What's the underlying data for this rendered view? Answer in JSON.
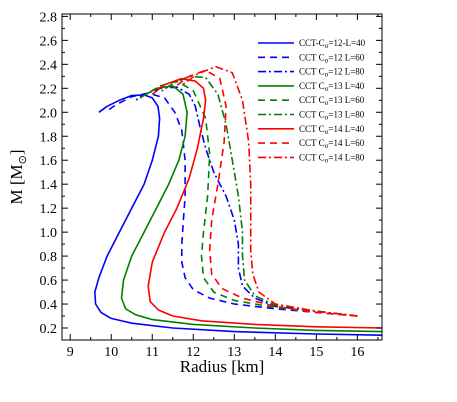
{
  "chart_data": {
    "type": "line",
    "xlabel": "Radius [km]",
    "ylabel": "M [M",
    "ylabel_sub": "⊙",
    "ylabel_close": "]",
    "xlim": [
      8.8,
      16.6
    ],
    "ylim": [
      0.1,
      2.82
    ],
    "xticks": [
      9,
      10,
      11,
      12,
      13,
      14,
      15,
      16
    ],
    "yticks": [
      0.2,
      0.4,
      0.6,
      0.8,
      1.0,
      1.2,
      1.4,
      1.6,
      1.8,
      2.0,
      2.2,
      2.4,
      2.6,
      2.8
    ],
    "ytick_labels": [
      "0.2",
      "0.4",
      "0.6",
      "0.8",
      "1.0",
      "1.2",
      "1.4",
      "1.6",
      "1.8",
      "2.0",
      "2.2",
      "2.4",
      "2.6",
      "2.8"
    ],
    "legend_position": "top-right",
    "colors": {
      "blue": "#0000ff",
      "green": "#008000",
      "red": "#ff0000"
    },
    "series": [
      {
        "name": "CCT-Cσ=12-L=40",
        "color": "#0000ff",
        "dash": "solid",
        "x": [
          16.6,
          15.0,
          13.0,
          11.5,
          10.5,
          10.0,
          9.75,
          9.62,
          9.6,
          9.7,
          9.9,
          10.2,
          10.5,
          10.8,
          11.0,
          11.15,
          11.18,
          11.14,
          11.0,
          10.8,
          10.5,
          10.2,
          9.9,
          9.7
        ],
        "y": [
          0.14,
          0.15,
          0.17,
          0.2,
          0.24,
          0.28,
          0.33,
          0.4,
          0.5,
          0.62,
          0.8,
          1.0,
          1.2,
          1.4,
          1.6,
          1.8,
          1.95,
          2.05,
          2.12,
          2.145,
          2.14,
          2.1,
          2.05,
          2.0
        ]
      },
      {
        "name": "CCT-Cσ=12 L=60",
        "color": "#0000ff",
        "dash": "7,5",
        "x": [
          16.0,
          15.0,
          14.0,
          13.0,
          12.4,
          12.0,
          11.8,
          11.72,
          11.72,
          11.76,
          11.8,
          11.8,
          11.72,
          11.55,
          11.3,
          10.9,
          10.5,
          10.1,
          9.9
        ],
        "y": [
          0.3,
          0.33,
          0.36,
          0.4,
          0.45,
          0.52,
          0.62,
          0.75,
          0.9,
          1.1,
          1.3,
          1.6,
          1.85,
          2.0,
          2.12,
          2.16,
          2.13,
          2.06,
          2.01
        ]
      },
      {
        "name": "CCT-Cσ=12 L=80",
        "color": "#0000ff",
        "dash": "8,3,2,3",
        "x": [
          16.0,
          15.0,
          14.0,
          13.5,
          13.2,
          13.1,
          13.1,
          13.0,
          12.8,
          12.5,
          12.3,
          12.15,
          12.05,
          11.9,
          11.6,
          11.2,
          10.8,
          10.6
        ],
        "y": [
          0.3,
          0.34,
          0.38,
          0.45,
          0.55,
          0.7,
          0.9,
          1.1,
          1.3,
          1.5,
          1.7,
          1.9,
          2.05,
          2.15,
          2.21,
          2.2,
          2.15,
          2.1
        ]
      },
      {
        "name": "CCT-Cσ=13 L=40",
        "color": "#008000",
        "dash": "solid",
        "x": [
          16.6,
          15.0,
          13.5,
          12.0,
          11.0,
          10.6,
          10.35,
          10.25,
          10.3,
          10.5,
          10.8,
          11.1,
          11.4,
          11.65,
          11.8,
          11.85,
          11.75,
          11.5,
          11.1,
          10.7
        ],
        "y": [
          0.17,
          0.18,
          0.2,
          0.23,
          0.27,
          0.31,
          0.36,
          0.45,
          0.6,
          0.8,
          1.0,
          1.2,
          1.4,
          1.6,
          1.8,
          2.0,
          2.15,
          2.22,
          2.2,
          2.12
        ]
      },
      {
        "name": "CCT-Cσ=13 L=60",
        "color": "#008000",
        "dash": "7,5",
        "x": [
          16.0,
          15.0,
          14.0,
          13.0,
          12.5,
          12.25,
          12.2,
          12.25,
          12.35,
          12.4,
          12.3,
          12.0,
          11.6,
          11.2,
          10.9
        ],
        "y": [
          0.3,
          0.33,
          0.37,
          0.43,
          0.5,
          0.62,
          0.8,
          1.0,
          1.3,
          1.65,
          1.95,
          2.18,
          2.26,
          2.22,
          2.16
        ]
      },
      {
        "name": "CCT-Cσ=13 L=80",
        "color": "#008000",
        "dash": "8,3,2,3",
        "x": [
          16.0,
          15.0,
          14.0,
          13.5,
          13.25,
          13.2,
          13.2,
          13.1,
          12.95,
          12.8,
          12.6,
          12.3,
          11.9,
          11.5,
          11.2
        ],
        "y": [
          0.3,
          0.34,
          0.39,
          0.47,
          0.6,
          0.8,
          1.0,
          1.3,
          1.6,
          1.9,
          2.15,
          2.29,
          2.3,
          2.24,
          2.17
        ]
      },
      {
        "name": "CCT-Cσ=14 L=40",
        "color": "#ff0000",
        "dash": "solid",
        "x": [
          16.6,
          15.0,
          13.5,
          12.2,
          11.5,
          11.15,
          10.95,
          10.9,
          11.0,
          11.3,
          11.6,
          11.9,
          12.1,
          12.25,
          12.3,
          12.25,
          12.05,
          11.7,
          11.3,
          11.0
        ],
        "y": [
          0.2,
          0.21,
          0.23,
          0.26,
          0.3,
          0.35,
          0.42,
          0.55,
          0.75,
          1.0,
          1.2,
          1.45,
          1.7,
          1.95,
          2.1,
          2.2,
          2.26,
          2.28,
          2.23,
          2.15
        ]
      },
      {
        "name": "CCT-Cσ=14 L=60",
        "color": "#ff0000",
        "dash": "7,5",
        "x": [
          16.0,
          15.0,
          14.0,
          13.2,
          12.7,
          12.45,
          12.4,
          12.45,
          12.6,
          12.75,
          12.8,
          12.65,
          12.3,
          11.9,
          11.5
        ],
        "y": [
          0.3,
          0.33,
          0.38,
          0.45,
          0.53,
          0.65,
          0.85,
          1.1,
          1.4,
          1.75,
          2.05,
          2.28,
          2.35,
          2.3,
          2.2
        ]
      },
      {
        "name": "CCT-Cσ=14 L=80",
        "color": "#ff0000",
        "dash": "8,3,2,3",
        "x": [
          16.0,
          15.0,
          14.0,
          13.6,
          13.45,
          13.4,
          13.4,
          13.4,
          13.35,
          13.2,
          12.95,
          12.55,
          12.1,
          11.7
        ],
        "y": [
          0.3,
          0.34,
          0.4,
          0.5,
          0.65,
          0.85,
          1.1,
          1.4,
          1.75,
          2.1,
          2.33,
          2.38,
          2.32,
          2.22
        ]
      }
    ],
    "legend": [
      {
        "pre": "CCT-C",
        "sub": "σ",
        "post": "=12-L=40",
        "color": "#0000ff",
        "dash": "solid"
      },
      {
        "pre": "CCT C",
        "sub": "σ",
        "post": "=12 L=60",
        "color": "#0000ff",
        "dash": "7,5"
      },
      {
        "pre": "CCT C",
        "sub": "σ",
        "post": "=12 L=80",
        "color": "#0000ff",
        "dash": "8,3,2,3"
      },
      {
        "pre": "CCT C",
        "sub": "σ",
        "post": "=13 L=40",
        "color": "#008000",
        "dash": "solid"
      },
      {
        "pre": "CCT C",
        "sub": "σ",
        "post": "=13 L=60",
        "color": "#008000",
        "dash": "7,5"
      },
      {
        "pre": "CCT C",
        "sub": "σ",
        "post": "=13 L=80",
        "color": "#008000",
        "dash": "8,3,2,3"
      },
      {
        "pre": "CCT C",
        "sub": "σ",
        "post": "=14 L=40",
        "color": "#ff0000",
        "dash": "solid"
      },
      {
        "pre": "CCT C",
        "sub": "σ",
        "post": "=14 L=60",
        "color": "#ff0000",
        "dash": "7,5"
      },
      {
        "pre": "CCT C",
        "sub": "σ",
        "post": "=14 L=80",
        "color": "#ff0000",
        "dash": "8,3,2,3"
      }
    ]
  }
}
